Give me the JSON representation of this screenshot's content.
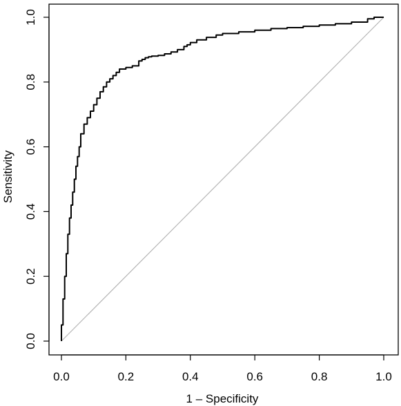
{
  "chart_data": {
    "type": "line",
    "title": "",
    "xlabel": "1 – Specificity",
    "ylabel": "Sensitivity",
    "xlim": [
      0,
      1
    ],
    "ylim": [
      0,
      1
    ],
    "grid": false,
    "x_ticks": [
      "0.0",
      "0.2",
      "0.4",
      "0.6",
      "0.8",
      "1.0"
    ],
    "y_ticks": [
      "0.0",
      "0.2",
      "0.4",
      "0.6",
      "0.8",
      "1.0"
    ],
    "series": [
      {
        "style": "solid-black",
        "x": [
          0.0,
          0.005,
          0.01,
          0.015,
          0.02,
          0.025,
          0.03,
          0.035,
          0.04,
          0.045,
          0.05,
          0.055,
          0.06,
          0.07,
          0.08,
          0.09,
          0.1,
          0.11,
          0.12,
          0.13,
          0.14,
          0.15,
          0.16,
          0.17,
          0.18,
          0.2,
          0.22,
          0.24,
          0.25,
          0.26,
          0.27,
          0.28,
          0.3,
          0.32,
          0.34,
          0.36,
          0.38,
          0.39,
          0.4,
          0.42,
          0.45,
          0.48,
          0.5,
          0.55,
          0.6,
          0.65,
          0.7,
          0.75,
          0.8,
          0.85,
          0.9,
          0.95,
          0.97,
          1.0
        ],
        "y": [
          0.0,
          0.05,
          0.13,
          0.2,
          0.27,
          0.33,
          0.38,
          0.42,
          0.46,
          0.5,
          0.54,
          0.57,
          0.6,
          0.64,
          0.67,
          0.69,
          0.71,
          0.73,
          0.75,
          0.77,
          0.785,
          0.8,
          0.81,
          0.82,
          0.83,
          0.84,
          0.845,
          0.85,
          0.865,
          0.87,
          0.875,
          0.878,
          0.88,
          0.882,
          0.887,
          0.893,
          0.9,
          0.91,
          0.915,
          0.922,
          0.93,
          0.938,
          0.945,
          0.95,
          0.955,
          0.96,
          0.965,
          0.968,
          0.972,
          0.976,
          0.98,
          0.985,
          0.995,
          1.0
        ]
      },
      {
        "style": "reference-gray",
        "x": [
          0,
          1
        ],
        "y": [
          0,
          1
        ]
      }
    ]
  }
}
